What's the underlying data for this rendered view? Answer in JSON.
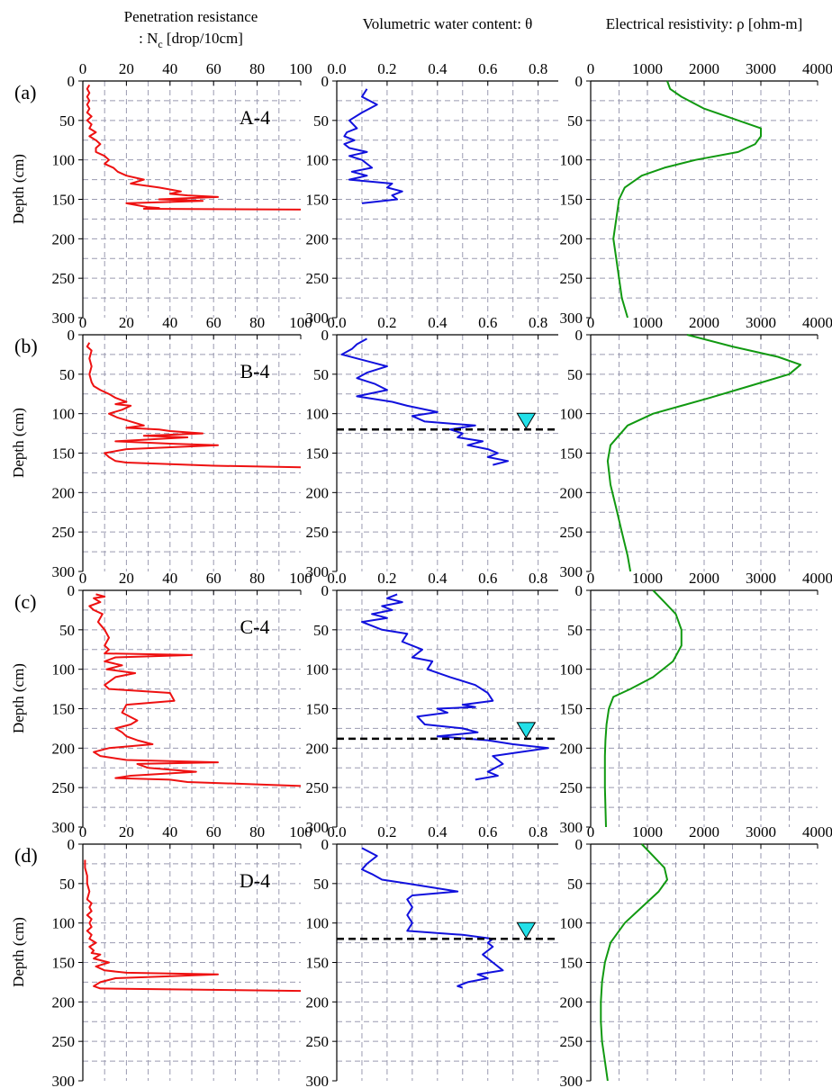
{
  "figure": {
    "column_titles": {
      "penetration_line1": "Penetration resistance",
      "penetration_line2_prefix": ": N",
      "penetration_line2_sub": "c",
      "penetration_line2_suffix": " [drop/10cm]",
      "water": "Volumetric water content: θ",
      "resistivity": "Electrical resistivity: ρ [ohm-m]"
    },
    "ylabel": "Depth (cm)",
    "colors": {
      "penetration": "#ee1111",
      "water": "#1111dd",
      "resistivity": "#119911",
      "water_table_marker": "#22e0e8",
      "grid": "#9a9ab0"
    }
  },
  "chart_data": [
    {
      "type": "line",
      "row": "(a)",
      "site_label": "A-4",
      "ylim": [
        300,
        0
      ],
      "yticks": [
        0,
        50,
        100,
        150,
        200,
        250,
        300
      ],
      "grid": true,
      "panels": [
        {
          "quantity": "Penetration resistance",
          "xlim": [
            0,
            100
          ],
          "xticks": [
            0,
            20,
            40,
            60,
            80,
            100
          ],
          "x": [
            3,
            2,
            3,
            2,
            3,
            2,
            3,
            2,
            4,
            2,
            4,
            3,
            6,
            3,
            6,
            8,
            6,
            6,
            10,
            12,
            10,
            14,
            16,
            20,
            28,
            22,
            35,
            45,
            40,
            48,
            62,
            35,
            55,
            20,
            26,
            30,
            35,
            28,
            100
          ],
          "depth": [
            5,
            10,
            15,
            20,
            25,
            30,
            35,
            40,
            45,
            50,
            55,
            60,
            65,
            70,
            75,
            80,
            85,
            90,
            95,
            100,
            105,
            110,
            115,
            120,
            125,
            130,
            135,
            140,
            143,
            145,
            147,
            150,
            152,
            155,
            158,
            160,
            161,
            162,
            163
          ]
        },
        {
          "quantity": "Volumetric water content",
          "xlim": [
            0,
            0.88
          ],
          "xticks": [
            0.0,
            0.2,
            0.4,
            0.6,
            0.8
          ],
          "x": [
            0.12,
            0.1,
            0.16,
            0.1,
            0.05,
            0.08,
            0.04,
            0.03,
            0.07,
            0.03,
            0.05,
            0.12,
            0.05,
            0.1,
            0.14,
            0.06,
            0.12,
            0.05,
            0.22,
            0.2,
            0.26,
            0.22,
            0.24,
            0.1
          ],
          "depth": [
            10,
            20,
            30,
            40,
            50,
            60,
            65,
            70,
            75,
            80,
            85,
            90,
            95,
            100,
            110,
            115,
            120,
            125,
            130,
            135,
            140,
            145,
            150,
            155
          ]
        },
        {
          "quantity": "Electrical resistivity",
          "xlim": [
            0,
            4000
          ],
          "xticks": [
            0,
            1000,
            2000,
            3000,
            4000
          ],
          "x": [
            1350,
            1400,
            1600,
            2000,
            2600,
            3000,
            3000,
            2900,
            2600,
            1850,
            1300,
            900,
            600,
            500,
            450,
            400,
            450,
            500,
            550,
            650
          ],
          "depth": [
            0,
            10,
            20,
            35,
            50,
            60,
            70,
            80,
            90,
            100,
            110,
            120,
            135,
            150,
            175,
            200,
            225,
            250,
            275,
            300
          ]
        }
      ]
    },
    {
      "type": "line",
      "row": "(b)",
      "site_label": "B-4",
      "ylim": [
        300,
        0
      ],
      "yticks": [
        0,
        50,
        100,
        150,
        200,
        250,
        300
      ],
      "grid": true,
      "water_table_depth": 120,
      "panels": [
        {
          "quantity": "Penetration resistance",
          "xlim": [
            0,
            100
          ],
          "xticks": [
            0,
            20,
            40,
            60,
            80,
            100
          ],
          "x": [
            3,
            2,
            4,
            3,
            4,
            3,
            4,
            5,
            8,
            12,
            15,
            18,
            20,
            15,
            22,
            18,
            12,
            16,
            22,
            28,
            20,
            35,
            40,
            55,
            28,
            48,
            15,
            40,
            62,
            20,
            10,
            12,
            15,
            20,
            40,
            60,
            100
          ],
          "depth": [
            10,
            15,
            20,
            30,
            40,
            50,
            60,
            65,
            70,
            75,
            80,
            83,
            85,
            88,
            90,
            95,
            100,
            105,
            110,
            115,
            118,
            120,
            122,
            125,
            128,
            130,
            135,
            138,
            140,
            145,
            150,
            155,
            160,
            162,
            164,
            166,
            168
          ]
        },
        {
          "quantity": "Volumetric water content",
          "xlim": [
            0,
            0.88
          ],
          "xticks": [
            0.0,
            0.2,
            0.4,
            0.6,
            0.8
          ],
          "x": [
            0.12,
            0.08,
            0.06,
            0.02,
            0.08,
            0.14,
            0.2,
            0.12,
            0.08,
            0.15,
            0.2,
            0.08,
            0.22,
            0.28,
            0.4,
            0.3,
            0.35,
            0.55,
            0.45,
            0.5,
            0.48,
            0.58,
            0.52,
            0.6,
            0.64,
            0.6,
            0.68,
            0.62
          ],
          "depth": [
            5,
            12,
            18,
            25,
            30,
            35,
            40,
            48,
            55,
            62,
            70,
            78,
            85,
            90,
            98,
            103,
            110,
            115,
            120,
            125,
            130,
            135,
            140,
            145,
            150,
            155,
            160,
            165
          ]
        },
        {
          "quantity": "Electrical resistivity",
          "xlim": [
            0,
            4000
          ],
          "xticks": [
            0,
            1000,
            2000,
            3000,
            4000
          ],
          "x": [
            1700,
            2500,
            3300,
            3700,
            3500,
            2800,
            2100,
            1600,
            1100,
            650,
            350,
            300,
            350,
            450,
            550,
            650,
            700
          ],
          "depth": [
            0,
            15,
            28,
            38,
            50,
            65,
            80,
            90,
            100,
            115,
            140,
            160,
            190,
            220,
            250,
            280,
            300
          ]
        }
      ]
    },
    {
      "type": "line",
      "row": "(c)",
      "site_label": "C-4",
      "ylim": [
        300,
        0
      ],
      "yticks": [
        0,
        50,
        100,
        150,
        200,
        250,
        300
      ],
      "grid": true,
      "water_table_depth": 188,
      "panels": [
        {
          "quantity": "Penetration resistance",
          "xlim": [
            0,
            100
          ],
          "xticks": [
            0,
            20,
            40,
            60,
            80,
            100
          ],
          "x": [
            6,
            10,
            5,
            8,
            3,
            5,
            9,
            7,
            10,
            12,
            10,
            12,
            10,
            50,
            15,
            10,
            18,
            11,
            24,
            15,
            10,
            12,
            40,
            42,
            20,
            18,
            25,
            22,
            15,
            18,
            20,
            25,
            32,
            12,
            5,
            8,
            20,
            62,
            25,
            30,
            52,
            22,
            15,
            40,
            48,
            70,
            100
          ],
          "depth": [
            5,
            8,
            10,
            15,
            20,
            25,
            30,
            40,
            50,
            60,
            70,
            75,
            80,
            82,
            85,
            90,
            95,
            100,
            105,
            110,
            120,
            125,
            130,
            140,
            145,
            155,
            165,
            170,
            175,
            180,
            185,
            190,
            195,
            200,
            205,
            210,
            215,
            218,
            220,
            225,
            230,
            235,
            238,
            240,
            243,
            245,
            248
          ]
        },
        {
          "quantity": "Volumetric water content",
          "xlim": [
            0,
            0.88
          ],
          "xticks": [
            0.0,
            0.2,
            0.4,
            0.6,
            0.8
          ],
          "x": [
            0.24,
            0.2,
            0.26,
            0.18,
            0.22,
            0.14,
            0.2,
            0.1,
            0.18,
            0.28,
            0.26,
            0.34,
            0.3,
            0.38,
            0.36,
            0.45,
            0.55,
            0.6,
            0.62,
            0.5,
            0.55,
            0.4,
            0.44,
            0.32,
            0.35,
            0.5,
            0.56,
            0.4,
            0.6,
            0.7,
            0.84,
            0.62,
            0.66,
            0.6,
            0.64,
            0.55
          ],
          "depth": [
            5,
            10,
            15,
            20,
            25,
            30,
            35,
            40,
            50,
            55,
            65,
            75,
            85,
            90,
            100,
            110,
            120,
            130,
            140,
            145,
            148,
            150,
            155,
            160,
            170,
            175,
            180,
            185,
            190,
            195,
            200,
            210,
            220,
            230,
            235,
            240
          ]
        },
        {
          "quantity": "Electrical resistivity",
          "xlim": [
            0,
            4000
          ],
          "xticks": [
            0,
            1000,
            2000,
            3000,
            4000
          ],
          "x": [
            1100,
            1300,
            1500,
            1600,
            1600,
            1450,
            1100,
            700,
            400,
            320,
            280,
            260,
            250,
            250,
            250,
            260,
            270
          ],
          "depth": [
            0,
            15,
            30,
            50,
            70,
            90,
            110,
            125,
            135,
            150,
            170,
            190,
            210,
            230,
            250,
            275,
            300
          ]
        }
      ]
    },
    {
      "type": "line",
      "row": "(d)",
      "site_label": "D-4",
      "ylim": [
        300,
        0
      ],
      "yticks": [
        0,
        50,
        100,
        150,
        200,
        250,
        300
      ],
      "grid": true,
      "water_table_depth": 120,
      "panels": [
        {
          "quantity": "Penetration resistance",
          "xlim": [
            0,
            100
          ],
          "xticks": [
            0,
            20,
            40,
            60,
            80,
            100
          ],
          "x": [
            1,
            1,
            2,
            2,
            3,
            2,
            4,
            3,
            4,
            2,
            4,
            3,
            4,
            2,
            4,
            3,
            6,
            3,
            5,
            4,
            8,
            5,
            12,
            6,
            10,
            20,
            62,
            35,
            15,
            8,
            5,
            8,
            100
          ],
          "depth": [
            20,
            30,
            40,
            50,
            60,
            70,
            75,
            80,
            85,
            90,
            95,
            100,
            105,
            110,
            115,
            120,
            125,
            130,
            135,
            138,
            140,
            145,
            150,
            155,
            160,
            163,
            165,
            168,
            170,
            175,
            180,
            183,
            186
          ]
        },
        {
          "quantity": "Volumetric water content",
          "xlim": [
            0,
            0.88
          ],
          "xticks": [
            0.0,
            0.2,
            0.4,
            0.6,
            0.8
          ],
          "x": [
            0.1,
            0.16,
            0.12,
            0.1,
            0.14,
            0.18,
            0.28,
            0.48,
            0.3,
            0.28,
            0.3,
            0.28,
            0.3,
            0.28,
            0.5,
            0.62,
            0.6,
            0.62,
            0.58,
            0.62,
            0.66,
            0.56,
            0.6,
            0.52,
            0.48,
            0.5
          ],
          "depth": [
            5,
            15,
            25,
            32,
            38,
            45,
            50,
            60,
            65,
            70,
            80,
            90,
            100,
            110,
            115,
            120,
            125,
            130,
            140,
            150,
            160,
            165,
            170,
            175,
            180,
            182
          ]
        },
        {
          "quantity": "Electrical resistivity",
          "xlim": [
            0,
            4000
          ],
          "xticks": [
            0,
            1000,
            2000,
            3000,
            4000
          ],
          "x": [
            900,
            1100,
            1300,
            1350,
            1200,
            900,
            600,
            350,
            250,
            200,
            180,
            180,
            200,
            250,
            300
          ],
          "depth": [
            0,
            15,
            30,
            45,
            60,
            80,
            100,
            125,
            150,
            175,
            200,
            225,
            250,
            275,
            300
          ]
        }
      ]
    }
  ]
}
